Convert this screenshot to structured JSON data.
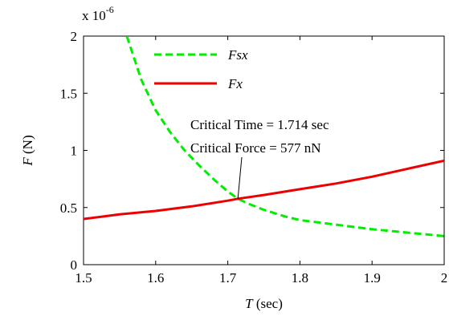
{
  "chart_data": {
    "type": "line",
    "xlabel_symbol": "T",
    "xlabel_unit": " (sec)",
    "ylabel_symbol": "F",
    "ylabel_unit": " (N)",
    "y_multiplier": "x 10",
    "y_multiplier_exp": "-6",
    "xlim": [
      1.5,
      2.0
    ],
    "ylim": [
      0,
      2
    ],
    "x_ticks": [
      "1.5",
      "1.6",
      "1.7",
      "1.8",
      "1.9",
      "2"
    ],
    "x_tick_values": [
      1.5,
      1.6,
      1.7,
      1.8,
      1.9,
      2.0
    ],
    "y_ticks": [
      "0",
      "0.5",
      "1",
      "1.5",
      "2"
    ],
    "y_tick_values": [
      0,
      0.5,
      1,
      1.5,
      2
    ],
    "grid": false,
    "legend_position": "top-left",
    "series": [
      {
        "name": "Fsx",
        "color": "#00ee00",
        "dash": "dashed",
        "x": [
          1.56,
          1.58,
          1.6,
          1.62,
          1.64,
          1.66,
          1.68,
          1.7,
          1.714,
          1.73,
          1.75,
          1.78,
          1.8,
          1.85,
          1.9,
          1.95,
          2.0
        ],
        "y": [
          2.0,
          1.62,
          1.35,
          1.16,
          1.0,
          0.87,
          0.75,
          0.64,
          0.577,
          0.53,
          0.48,
          0.42,
          0.39,
          0.35,
          0.31,
          0.28,
          0.25
        ]
      },
      {
        "name": "Fx",
        "color": "#ee0000",
        "dash": "solid",
        "x": [
          1.5,
          1.55,
          1.6,
          1.65,
          1.7,
          1.714,
          1.75,
          1.8,
          1.85,
          1.9,
          1.95,
          2.0
        ],
        "y": [
          0.4,
          0.44,
          0.47,
          0.51,
          0.56,
          0.577,
          0.61,
          0.66,
          0.71,
          0.77,
          0.84,
          0.91
        ]
      }
    ],
    "annotation": {
      "line1": "Critical Time = 1.714 sec",
      "line2": "Critical Force = 577 nN",
      "point_x": 1.714,
      "point_y": 0.577
    }
  }
}
